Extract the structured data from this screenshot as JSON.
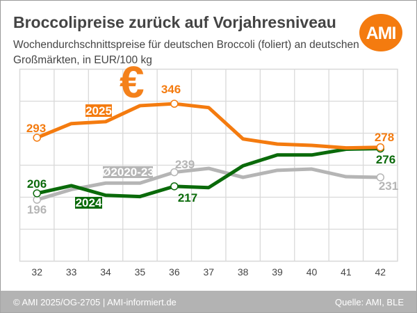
{
  "header": {
    "title": "Broccolipreise zurück auf Vorjahresniveau",
    "subtitle_line1": "Wochendurchschnittspreise für deutschen Broccoli (foliert) an deutschen",
    "subtitle_line2": "Großmärkten, in EUR/100 kg",
    "logo_text": "AMI"
  },
  "footer": {
    "left": "© AMI 2025/OG-2705 | AMI-informiert.de",
    "right": "Quelle: AMI, BLE"
  },
  "colors": {
    "orange": "#f47b0f",
    "green": "#0a6a0a",
    "gray": "#b5b5b5",
    "footer_bg": "#b3b3b3",
    "grid": "#d9d9d9"
  },
  "decor_icon": "euro-icon",
  "chart_data": {
    "type": "line",
    "title": "Broccolipreise zurück auf Vorjahresniveau",
    "xlabel": "",
    "ylabel": "EUR/100 kg",
    "x": [
      32,
      33,
      34,
      35,
      36,
      37,
      38,
      39,
      40,
      41,
      42
    ],
    "ylim": [
      100,
      400
    ],
    "y_gridlines": [
      100,
      150,
      200,
      250,
      300,
      350,
      400
    ],
    "grid": true,
    "series": [
      {
        "name": "2025",
        "color": "#f47b0f",
        "values": [
          293,
          315,
          318,
          343,
          346,
          340,
          291,
          283,
          281,
          277,
          278
        ]
      },
      {
        "name": "2024",
        "color": "#0a6a0a",
        "values": [
          206,
          218,
          203,
          201,
          217,
          215,
          249,
          266,
          266,
          275,
          276
        ]
      },
      {
        "name": "Ø2020-23",
        "color": "#b5b5b5",
        "values": [
          196,
          212,
          222,
          222,
          239,
          245,
          231,
          242,
          244,
          232,
          231
        ]
      }
    ],
    "annotations": [
      {
        "series": "2025",
        "x": 32,
        "text": "293"
      },
      {
        "series": "2025",
        "x": 36,
        "text": "346"
      },
      {
        "series": "2025",
        "x": 42,
        "text": "278"
      },
      {
        "series": "2024",
        "x": 32,
        "text": "206"
      },
      {
        "series": "2024",
        "x": 36,
        "text": "217"
      },
      {
        "series": "2024",
        "x": 42,
        "text": "276"
      },
      {
        "series": "Ø2020-23",
        "x": 32,
        "text": "196"
      },
      {
        "series": "Ø2020-23",
        "x": 36,
        "text": "239"
      },
      {
        "series": "Ø2020-23",
        "x": 42,
        "text": "231"
      }
    ]
  }
}
